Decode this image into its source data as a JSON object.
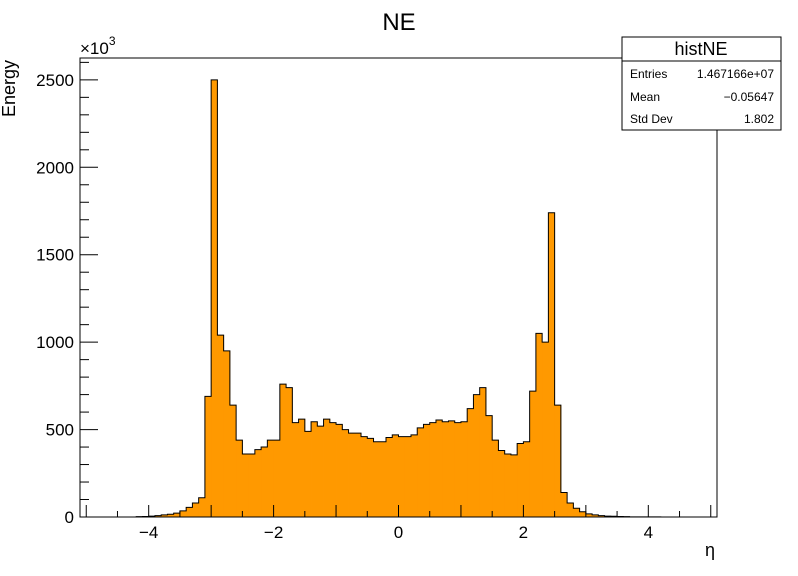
{
  "chart_data": {
    "type": "bar",
    "title": "NE",
    "xlabel": "η",
    "ylabel": "Energy",
    "y_multiplier_label": "×10",
    "y_multiplier_exponent": "3",
    "xlim": [
      -5.1,
      5.1
    ],
    "ylim": [
      0,
      2625
    ],
    "bin_width": 0.1,
    "x_ticks": [
      -4,
      -2,
      0,
      2,
      4
    ],
    "x_tick_labels": [
      "−4",
      "−2",
      "0",
      "2",
      "4"
    ],
    "y_ticks": [
      0,
      500,
      1000,
      1500,
      2000,
      2500
    ],
    "y_tick_labels": [
      "0",
      "500",
      "1000",
      "1500",
      "2000",
      "2500"
    ],
    "fill_color": "#ff9900",
    "line_color": "#000000",
    "grid": false,
    "bins_x_start": [
      -4.2,
      -4.1,
      -4.0,
      -3.9,
      -3.8,
      -3.7,
      -3.6,
      -3.5,
      -3.4,
      -3.3,
      -3.2,
      -3.1,
      -3.0,
      -2.9,
      -2.8,
      -2.7,
      -2.6,
      -2.5,
      -2.4,
      -2.3,
      -2.2,
      -2.1,
      -2.0,
      -1.9,
      -1.8,
      -1.7,
      -1.6,
      -1.5,
      -1.4,
      -1.3,
      -1.2,
      -1.1,
      -1.0,
      -0.9,
      -0.8,
      -0.7,
      -0.6,
      -0.5,
      -0.4,
      -0.3,
      -0.2,
      -0.1,
      0.0,
      0.1,
      0.2,
      0.3,
      0.4,
      0.5,
      0.6,
      0.7,
      0.8,
      0.9,
      1.0,
      1.1,
      1.2,
      1.3,
      1.4,
      1.5,
      1.6,
      1.7,
      1.8,
      1.9,
      2.0,
      2.1,
      2.2,
      2.3,
      2.4,
      2.5,
      2.6,
      2.7,
      2.8,
      2.9,
      3.0,
      3.1,
      3.2,
      3.3,
      3.4,
      3.5,
      3.6,
      3.7,
      3.8,
      3.9,
      4.0,
      4.1
    ],
    "values": [
      2,
      3,
      5,
      8,
      12,
      16,
      22,
      35,
      55,
      80,
      110,
      690,
      2500,
      1040,
      950,
      640,
      440,
      360,
      360,
      385,
      400,
      440,
      440,
      760,
      740,
      540,
      560,
      490,
      545,
      520,
      560,
      540,
      530,
      500,
      480,
      480,
      460,
      450,
      430,
      430,
      455,
      470,
      460,
      460,
      470,
      510,
      530,
      540,
      555,
      545,
      550,
      540,
      545,
      620,
      700,
      740,
      580,
      440,
      380,
      360,
      355,
      420,
      430,
      720,
      1050,
      1000,
      1740,
      640,
      140,
      80,
      50,
      30,
      18,
      12,
      8,
      5,
      4,
      3,
      2,
      1,
      1,
      1,
      1,
      1
    ]
  },
  "stats_box": {
    "title": "histNE",
    "rows": [
      {
        "label": "Entries",
        "value": "1.467166e+07"
      },
      {
        "label": "Mean",
        "value": "−0.05647"
      },
      {
        "label": "Std Dev",
        "value": "1.802"
      }
    ]
  }
}
